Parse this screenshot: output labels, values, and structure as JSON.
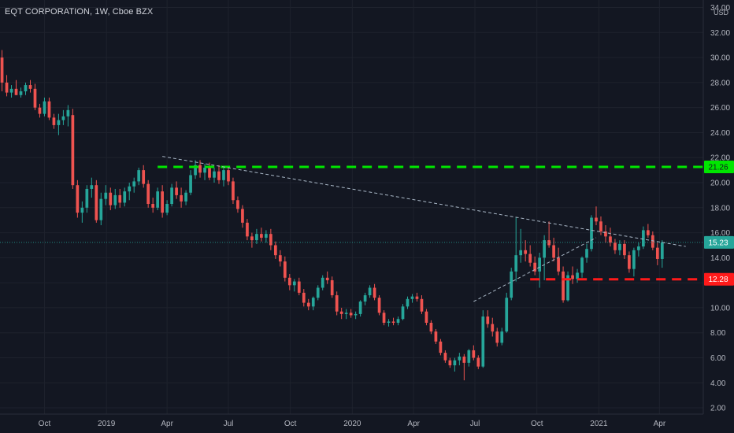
{
  "header": {
    "title": "EQT CORPORATION, 1W, Cboe BZX"
  },
  "colors": {
    "background": "#131722",
    "up": "#26a69a",
    "down": "#ef5350",
    "grid": "#1e222d",
    "axis_text": "#b2b5be",
    "resistance": "#00e600",
    "support": "#ff1a1a",
    "trendline": "#a9b7c6",
    "last_price_tag": "#26a69a"
  },
  "chart_data": {
    "type": "candlestick",
    "title": "EQT CORPORATION, 1W, Cboe BZX",
    "currency": "USD",
    "ylim": [
      1.5,
      34.6
    ],
    "xlim": [
      "2018-07-27",
      "2021-06-05"
    ],
    "x_tick_labels": [
      {
        "date": "2018-10-01",
        "label": "Oct"
      },
      {
        "date": "2019-01-01",
        "label": "2019"
      },
      {
        "date": "2019-04-01",
        "label": "Apr"
      },
      {
        "date": "2019-07-01",
        "label": "Jul"
      },
      {
        "date": "2019-10-01",
        "label": "Oct"
      },
      {
        "date": "2020-01-01",
        "label": "2020"
      },
      {
        "date": "2020-04-01",
        "label": "Apr"
      },
      {
        "date": "2020-07-01",
        "label": "Jul"
      },
      {
        "date": "2020-10-01",
        "label": "Oct"
      },
      {
        "date": "2021-01-01",
        "label": "2021"
      },
      {
        "date": "2021-04-01",
        "label": "Apr"
      }
    ],
    "y_ticks": [
      2,
      4,
      6,
      8,
      10,
      12,
      14,
      16,
      18,
      20,
      22,
      24,
      26,
      28,
      30,
      32,
      34
    ],
    "y_tick_labels": [
      "2.00",
      "4.00",
      "6.00",
      "8.00",
      "10.00",
      "12.00",
      "14.00",
      "16.00",
      "18.00",
      "20.00",
      "22.00",
      "24.00",
      "26.00",
      "28.00",
      "30.00",
      "32.00",
      "34.00"
    ],
    "start_date": "2018-07-30",
    "period_days": 7,
    "candles": [
      [
        30.0,
        30.6,
        27.3,
        28.0
      ],
      [
        28.0,
        28.6,
        26.9,
        27.2
      ],
      [
        27.2,
        27.8,
        26.8,
        27.5
      ],
      [
        27.5,
        28.2,
        27.0,
        27.0
      ],
      [
        27.0,
        27.6,
        26.8,
        27.3
      ],
      [
        27.3,
        28.0,
        27.0,
        27.8
      ],
      [
        27.8,
        28.2,
        27.2,
        27.5
      ],
      [
        27.5,
        27.9,
        25.8,
        26.0
      ],
      [
        26.0,
        26.3,
        25.2,
        25.5
      ],
      [
        25.5,
        26.8,
        25.3,
        26.5
      ],
      [
        26.5,
        26.8,
        25.0,
        25.2
      ],
      [
        25.2,
        25.5,
        24.3,
        24.6
      ],
      [
        24.6,
        25.5,
        23.8,
        25.0
      ],
      [
        25.0,
        25.8,
        24.6,
        25.3
      ],
      [
        25.3,
        26.2,
        24.5,
        25.8
      ],
      [
        25.4,
        25.9,
        19.5,
        19.8
      ],
      [
        19.8,
        20.2,
        17.2,
        17.6
      ],
      [
        17.6,
        18.5,
        16.8,
        18.0
      ],
      [
        18.0,
        19.8,
        17.6,
        19.5
      ],
      [
        19.5,
        20.4,
        18.8,
        19.8
      ],
      [
        19.8,
        20.2,
        16.8,
        17.0
      ],
      [
        17.0,
        19.2,
        16.6,
        18.7
      ],
      [
        18.7,
        19.8,
        18.2,
        19.2
      ],
      [
        19.2,
        19.6,
        17.8,
        18.2
      ],
      [
        18.2,
        19.5,
        17.9,
        19.0
      ],
      [
        19.0,
        19.5,
        18.0,
        18.4
      ],
      [
        18.4,
        19.6,
        18.1,
        19.3
      ],
      [
        19.3,
        20.0,
        18.6,
        19.7
      ],
      [
        19.7,
        20.4,
        19.2,
        20.1
      ],
      [
        20.1,
        21.2,
        19.8,
        21.0
      ],
      [
        21.0,
        21.4,
        19.6,
        19.9
      ],
      [
        19.9,
        20.2,
        18.0,
        18.3
      ],
      [
        18.3,
        18.8,
        17.6,
        18.0
      ],
      [
        18.0,
        19.6,
        17.8,
        19.3
      ],
      [
        19.3,
        19.8,
        17.2,
        17.6
      ],
      [
        17.6,
        18.6,
        17.4,
        18.3
      ],
      [
        18.3,
        19.9,
        18.1,
        19.6
      ],
      [
        19.6,
        20.1,
        18.7,
        19.0
      ],
      [
        19.0,
        19.6,
        18.0,
        18.5
      ],
      [
        18.5,
        19.4,
        18.2,
        19.2
      ],
      [
        19.2,
        21.0,
        19.0,
        20.6
      ],
      [
        20.6,
        21.8,
        20.3,
        21.4
      ],
      [
        21.4,
        21.8,
        20.4,
        20.8
      ],
      [
        20.8,
        21.5,
        20.2,
        21.2
      ],
      [
        21.2,
        21.6,
        20.2,
        20.4
      ],
      [
        20.4,
        21.2,
        20.0,
        20.9
      ],
      [
        20.9,
        21.4,
        19.9,
        20.2
      ],
      [
        20.2,
        21.2,
        19.7,
        21.0
      ],
      [
        21.0,
        21.3,
        19.8,
        20.1
      ],
      [
        20.1,
        20.4,
        18.3,
        18.6
      ],
      [
        18.6,
        18.9,
        17.6,
        17.9
      ],
      [
        17.9,
        18.2,
        16.4,
        16.8
      ],
      [
        16.8,
        17.1,
        15.4,
        15.7
      ],
      [
        15.7,
        16.0,
        14.8,
        15.4
      ],
      [
        15.4,
        16.3,
        15.1,
        15.9
      ],
      [
        15.9,
        16.4,
        15.3,
        15.6
      ],
      [
        15.6,
        16.2,
        15.2,
        15.9
      ],
      [
        15.9,
        16.3,
        14.6,
        15.0
      ],
      [
        15.0,
        15.3,
        13.9,
        14.2
      ],
      [
        14.2,
        14.6,
        13.3,
        13.7
      ],
      [
        13.7,
        14.1,
        12.1,
        12.4
      ],
      [
        12.4,
        12.7,
        11.4,
        11.8
      ],
      [
        11.8,
        12.3,
        11.3,
        12.1
      ],
      [
        12.1,
        12.4,
        11.0,
        11.2
      ],
      [
        11.2,
        11.5,
        10.1,
        10.4
      ],
      [
        10.4,
        10.7,
        9.8,
        10.1
      ],
      [
        10.1,
        10.9,
        9.8,
        10.8
      ],
      [
        10.8,
        11.8,
        10.6,
        11.6
      ],
      [
        11.6,
        12.6,
        11.4,
        12.4
      ],
      [
        12.4,
        12.9,
        11.9,
        12.2
      ],
      [
        12.2,
        12.5,
        10.8,
        11.0
      ],
      [
        11.0,
        11.3,
        9.4,
        9.7
      ],
      [
        9.7,
        10.0,
        9.1,
        9.5
      ],
      [
        9.5,
        9.9,
        9.1,
        9.6
      ],
      [
        9.6,
        9.9,
        9.2,
        9.4
      ],
      [
        9.4,
        9.7,
        9.1,
        9.5
      ],
      [
        9.5,
        10.6,
        9.3,
        10.5
      ],
      [
        10.5,
        11.2,
        10.2,
        11.0
      ],
      [
        11.0,
        11.8,
        10.8,
        11.6
      ],
      [
        11.6,
        11.9,
        10.6,
        10.8
      ],
      [
        10.8,
        11.0,
        9.4,
        9.6
      ],
      [
        9.6,
        9.8,
        8.6,
        8.8
      ],
      [
        8.8,
        9.1,
        8.5,
        8.9
      ],
      [
        8.9,
        9.2,
        8.6,
        8.8
      ],
      [
        8.8,
        9.3,
        8.6,
        9.1
      ],
      [
        9.1,
        10.3,
        9.0,
        10.1
      ],
      [
        10.1,
        10.9,
        9.9,
        10.7
      ],
      [
        10.7,
        11.1,
        10.4,
        10.9
      ],
      [
        10.9,
        11.2,
        10.5,
        10.7
      ],
      [
        10.7,
        11.0,
        9.5,
        9.7
      ],
      [
        9.7,
        9.9,
        8.6,
        8.8
      ],
      [
        8.8,
        9.0,
        7.9,
        8.1
      ],
      [
        8.1,
        8.3,
        7.1,
        7.3
      ],
      [
        7.3,
        7.5,
        6.2,
        6.4
      ],
      [
        6.4,
        6.6,
        5.6,
        5.8
      ],
      [
        5.8,
        6.0,
        5.2,
        5.4
      ],
      [
        5.4,
        6.0,
        4.9,
        5.8
      ],
      [
        5.8,
        6.4,
        5.4,
        6.1
      ],
      [
        6.1,
        6.3,
        4.2,
        5.6
      ],
      [
        5.6,
        6.7,
        5.3,
        6.6
      ],
      [
        6.6,
        7.0,
        5.8,
        6.0
      ],
      [
        6.0,
        6.2,
        5.1,
        5.3
      ],
      [
        5.3,
        9.8,
        5.2,
        9.3
      ],
      [
        9.3,
        9.8,
        8.4,
        8.7
      ],
      [
        8.7,
        9.2,
        7.7,
        8.1
      ],
      [
        8.1,
        8.4,
        6.9,
        7.2
      ],
      [
        7.2,
        8.4,
        7.0,
        8.1
      ],
      [
        8.1,
        11.2,
        8.0,
        10.8
      ],
      [
        10.8,
        13.2,
        10.6,
        12.9
      ],
      [
        12.9,
        17.2,
        12.1,
        14.2
      ],
      [
        14.2,
        16.3,
        13.6,
        14.6
      ],
      [
        14.6,
        15.4,
        13.7,
        14.3
      ],
      [
        14.3,
        15.0,
        13.3,
        13.6
      ],
      [
        13.6,
        14.1,
        12.6,
        12.9
      ],
      [
        12.9,
        14.4,
        11.6,
        14.0
      ],
      [
        14.0,
        15.8,
        12.2,
        15.4
      ],
      [
        15.4,
        16.9,
        14.8,
        15.0
      ],
      [
        15.0,
        15.6,
        13.7,
        14.0
      ],
      [
        14.0,
        14.8,
        12.6,
        12.9
      ],
      [
        12.9,
        13.3,
        10.4,
        10.6
      ],
      [
        10.6,
        12.9,
        10.5,
        12.6
      ],
      [
        12.6,
        13.3,
        11.9,
        12.3
      ],
      [
        12.3,
        13.1,
        12.0,
        12.8
      ],
      [
        12.8,
        14.1,
        12.4,
        14.0
      ],
      [
        14.0,
        15.1,
        13.6,
        14.7
      ],
      [
        14.7,
        17.4,
        14.5,
        17.2
      ],
      [
        17.2,
        18.1,
        16.6,
        16.9
      ],
      [
        16.9,
        17.3,
        15.8,
        16.1
      ],
      [
        16.1,
        16.6,
        15.2,
        15.7
      ],
      [
        15.7,
        16.4,
        14.9,
        15.2
      ],
      [
        15.2,
        15.5,
        14.3,
        14.6
      ],
      [
        14.6,
        15.4,
        14.2,
        15.1
      ],
      [
        15.1,
        15.4,
        13.9,
        14.2
      ],
      [
        14.2,
        14.5,
        12.8,
        13.1
      ],
      [
        13.1,
        14.8,
        12.5,
        14.6
      ],
      [
        14.6,
        15.2,
        14.1,
        14.9
      ],
      [
        14.9,
        16.5,
        14.7,
        16.2
      ],
      [
        16.2,
        16.7,
        15.6,
        15.8
      ],
      [
        15.8,
        16.1,
        14.6,
        14.8
      ],
      [
        14.8,
        15.2,
        13.4,
        13.9
      ],
      [
        13.9,
        15.4,
        13.2,
        15.23
      ]
    ],
    "horizontal_lines": [
      {
        "name": "resistance",
        "price": 21.26,
        "label": "21.26",
        "style": "dashed",
        "color": "#00e600"
      },
      {
        "name": "support",
        "price": 12.28,
        "label": "12.28",
        "style": "dashed",
        "color": "#ff1a1a"
      }
    ],
    "trend_lines": [
      {
        "name": "descending-trendline",
        "from": {
          "date": "2019-03-25",
          "price": 22.1
        },
        "to": {
          "date": "2021-05-10",
          "price": 14.9
        }
      },
      {
        "name": "ascending-trendline",
        "from": {
          "date": "2020-06-29",
          "price": 10.5
        },
        "to": {
          "date": "2020-12-28",
          "price": 15.6
        }
      }
    ],
    "last_price": {
      "price": 15.23,
      "label": "15.23"
    }
  }
}
